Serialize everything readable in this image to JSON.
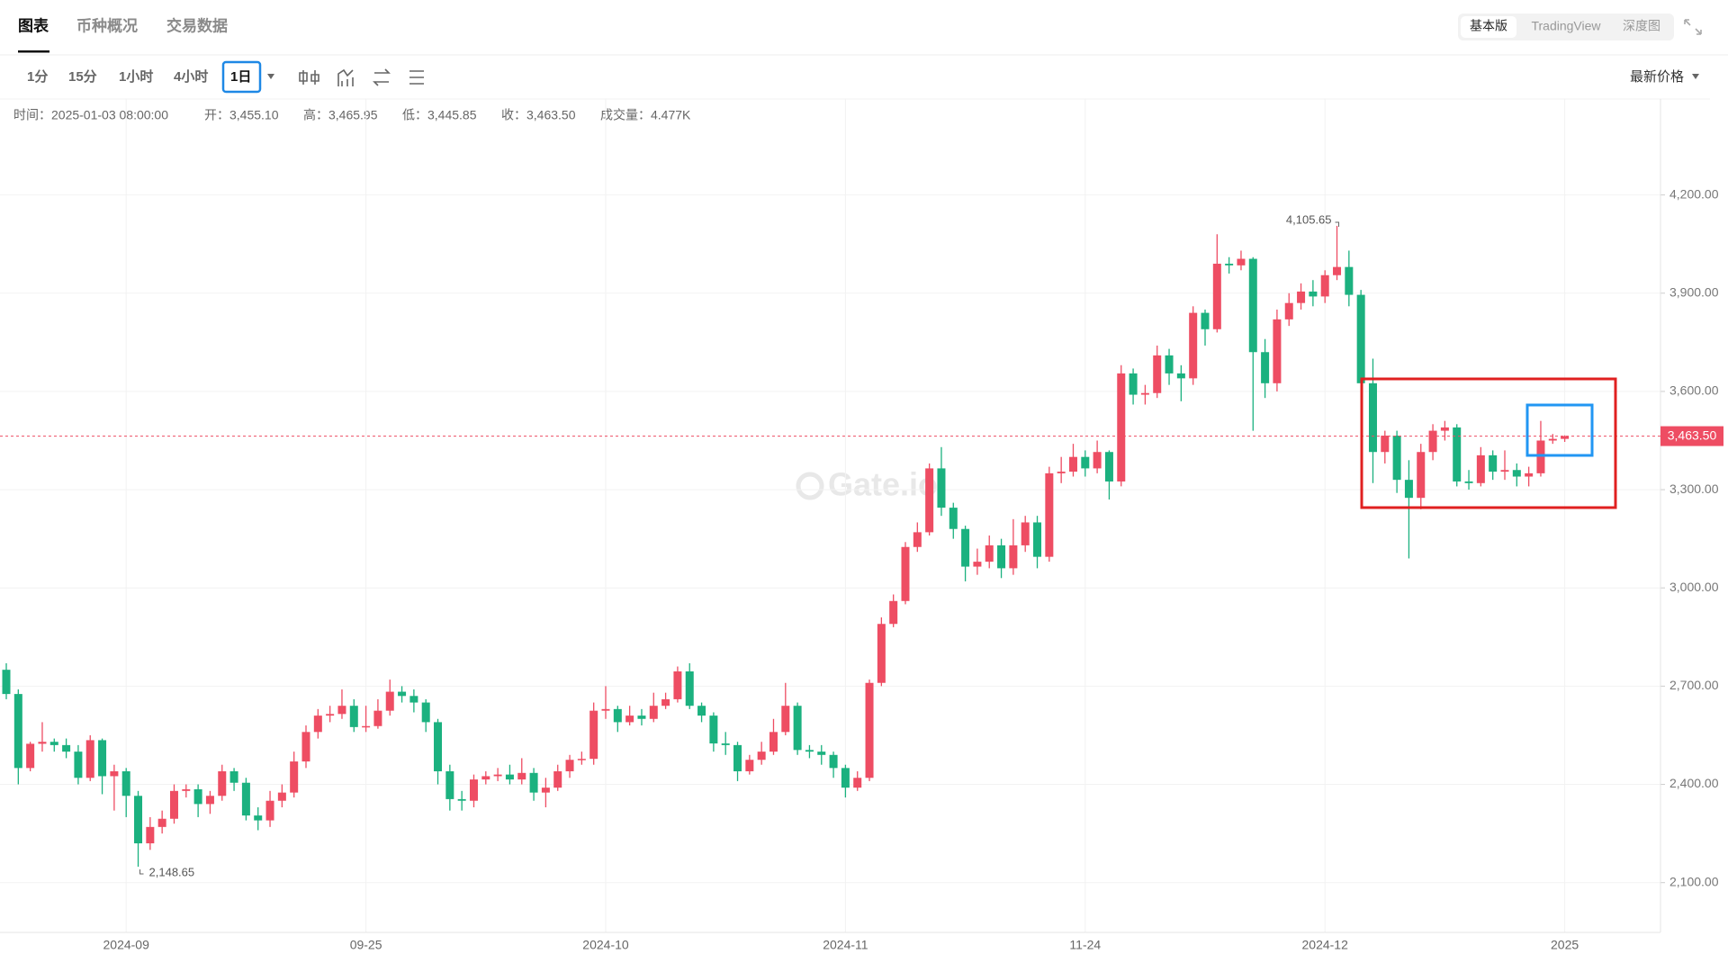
{
  "ui": {
    "tabs": [
      "图表",
      "币种概况",
      "交易数据"
    ],
    "modes": [
      "基本版",
      "TradingView",
      "深度图"
    ],
    "intervals": [
      "1分",
      "15分",
      "1小时",
      "4小时",
      "1日"
    ],
    "price_mode": "最新价格",
    "info": [
      "时间：2025-01-03 08:00:00",
      "开：3,455.10",
      "高：3,465.95",
      "低：3,445.85",
      "收：3,463.50",
      "成交量：4.477K"
    ],
    "watermark": "Gate.io"
  },
  "chart_data": {
    "type": "candlestick",
    "categories": [
      null,
      null,
      null,
      null,
      null,
      null,
      null,
      null,
      null,
      null,
      "2024-09",
      null,
      null,
      null,
      null,
      null,
      null,
      null,
      null,
      null,
      null,
      null,
      null,
      null,
      null,
      null,
      null,
      null,
      null,
      null,
      "09-25",
      null,
      null,
      null,
      null,
      null,
      null,
      null,
      null,
      null,
      null,
      null,
      null,
      null,
      null,
      null,
      null,
      null,
      null,
      null,
      "2024-10",
      null,
      null,
      null,
      null,
      null,
      null,
      null,
      null,
      null,
      null,
      null,
      null,
      null,
      null,
      null,
      null,
      null,
      null,
      null,
      "2024-11",
      null,
      null,
      null,
      null,
      null,
      null,
      null,
      null,
      null,
      null,
      null,
      null,
      null,
      null,
      null,
      null,
      null,
      null,
      null,
      "11-24",
      null,
      null,
      null,
      null,
      null,
      null,
      null,
      null,
      null,
      null,
      null,
      null,
      null,
      null,
      null,
      null,
      null,
      null,
      null,
      "2024-12",
      null,
      null,
      null,
      null,
      null,
      null,
      null,
      null,
      null,
      null,
      null,
      null,
      null,
      null,
      null,
      null,
      null,
      null,
      null,
      "2025"
    ],
    "open": [
      2750,
      2676,
      2450,
      2524,
      2530,
      2520,
      2500,
      2420,
      2535,
      2425,
      2440,
      2365,
      2220,
      2270,
      2295,
      2380,
      2385,
      2340,
      2365,
      2440,
      2405,
      2305,
      2290,
      2350,
      2375,
      2470,
      2560,
      2610,
      2615,
      2640,
      2575,
      2578,
      2625,
      2683,
      2670,
      2650,
      2590,
      2440,
      2355,
      2350,
      2415,
      2425,
      2430,
      2415,
      2435,
      2375,
      2390,
      2440,
      2475,
      2478,
      2625,
      2630,
      2590,
      2610,
      2600,
      2640,
      2660,
      2745,
      2640,
      2610,
      2525,
      2520,
      2440,
      2475,
      2500,
      2560,
      2640,
      2505,
      2500,
      2490,
      2450,
      2390,
      2420,
      2710,
      2890,
      2960,
      3125,
      3170,
      3365,
      3245,
      3180,
      3065,
      3080,
      3130,
      3060,
      3130,
      3200,
      3095,
      3350,
      3355,
      3400,
      3365,
      3415,
      3325,
      3655,
      3590,
      3595,
      3710,
      3655,
      3640,
      3840,
      3790,
      3990,
      3985,
      4005,
      3720,
      3625,
      3820,
      3870,
      3905,
      3890,
      3955,
      3980,
      3895,
      3625,
      3415,
      3465,
      3330,
      3275,
      3415,
      3480,
      3490,
      3325,
      3320,
      3405,
      3355,
      3360,
      3340,
      3350,
      3450,
      3455.1
    ],
    "high": [
      2770,
      2690,
      2530,
      2590,
      2540,
      2540,
      2520,
      2550,
      2540,
      2460,
      2450,
      2380,
      2300,
      2320,
      2400,
      2400,
      2400,
      2380,
      2460,
      2450,
      2420,
      2330,
      2380,
      2400,
      2500,
      2580,
      2630,
      2640,
      2690,
      2660,
      2640,
      2660,
      2720,
      2700,
      2690,
      2660,
      2600,
      2460,
      2380,
      2430,
      2440,
      2450,
      2460,
      2480,
      2450,
      2420,
      2460,
      2490,
      2500,
      2650,
      2700,
      2640,
      2640,
      2630,
      2680,
      2680,
      2760,
      2770,
      2650,
      2620,
      2560,
      2530,
      2490,
      2530,
      2600,
      2710,
      2650,
      2520,
      2520,
      2500,
      2460,
      2440,
      2720,
      2910,
      2980,
      3140,
      3200,
      3380,
      3430,
      3260,
      3190,
      3120,
      3160,
      3150,
      3210,
      3220,
      3220,
      3370,
      3400,
      3440,
      3420,
      3450,
      3420,
      3680,
      3670,
      3620,
      3740,
      3730,
      3680,
      3860,
      3850,
      4080,
      4010,
      4030,
      4010,
      3760,
      3850,
      3900,
      3930,
      3940,
      3970,
      4105.65,
      4030,
      3910,
      3700,
      3480,
      3480,
      3390,
      3440,
      3500,
      3510,
      3500,
      3360,
      3430,
      3420,
      3420,
      3380,
      3370,
      3510,
      3470,
      3465.95
    ],
    "low": [
      2660,
      2400,
      2440,
      2500,
      2500,
      2480,
      2400,
      2410,
      2370,
      2320,
      2300,
      2148.65,
      2200,
      2250,
      2280,
      2360,
      2300,
      2310,
      2350,
      2380,
      2290,
      2260,
      2270,
      2330,
      2360,
      2450,
      2540,
      2590,
      2600,
      2560,
      2560,
      2570,
      2610,
      2650,
      2620,
      2560,
      2400,
      2320,
      2320,
      2330,
      2400,
      2410,
      2400,
      2400,
      2350,
      2330,
      2380,
      2420,
      2460,
      2460,
      2600,
      2560,
      2580,
      2580,
      2590,
      2630,
      2650,
      2630,
      2590,
      2500,
      2490,
      2410,
      2430,
      2460,
      2490,
      2550,
      2490,
      2480,
      2460,
      2420,
      2360,
      2380,
      2410,
      2700,
      2880,
      2950,
      3110,
      3160,
      3220,
      3150,
      3020,
      3040,
      3060,
      3030,
      3040,
      3110,
      3060,
      3080,
      3320,
      3340,
      3340,
      3350,
      3270,
      3310,
      3560,
      3560,
      3580,
      3620,
      3570,
      3620,
      3740,
      3780,
      3960,
      3970,
      3480,
      3580,
      3600,
      3800,
      3850,
      3860,
      3870,
      3940,
      3860,
      3600,
      3320,
      3380,
      3290,
      3090,
      3240,
      3390,
      3450,
      3310,
      3300,
      3310,
      3330,
      3330,
      3310,
      3310,
      3340,
      3440,
      3445.85
    ],
    "close": [
      2676,
      2450,
      2524,
      2530,
      2520,
      2500,
      2420,
      2535,
      2425,
      2440,
      2365,
      2220,
      2270,
      2295,
      2380,
      2385,
      2340,
      2365,
      2440,
      2405,
      2305,
      2290,
      2350,
      2375,
      2470,
      2560,
      2610,
      2615,
      2640,
      2575,
      2578,
      2625,
      2683,
      2670,
      2650,
      2590,
      2440,
      2355,
      2350,
      2415,
      2425,
      2430,
      2415,
      2435,
      2375,
      2390,
      2440,
      2475,
      2478,
      2625,
      2630,
      2590,
      2610,
      2600,
      2640,
      2660,
      2745,
      2640,
      2610,
      2525,
      2520,
      2440,
      2475,
      2500,
      2560,
      2640,
      2505,
      2500,
      2490,
      2450,
      2390,
      2420,
      2710,
      2890,
      2960,
      3125,
      3170,
      3365,
      3245,
      3180,
      3065,
      3080,
      3130,
      3060,
      3130,
      3200,
      3095,
      3350,
      3355,
      3400,
      3365,
      3415,
      3325,
      3655,
      3590,
      3595,
      3710,
      3655,
      3640,
      3840,
      3790,
      3990,
      3985,
      4005,
      3720,
      3625,
      3820,
      3870,
      3905,
      3890,
      3955,
      3980,
      3895,
      3625,
      3415,
      3465,
      3330,
      3275,
      3415,
      3480,
      3490,
      3325,
      3320,
      3405,
      3355,
      3360,
      3340,
      3350,
      3450,
      3455.1,
      3463.5
    ],
    "ylim": [
      1948,
      4493
    ],
    "yticks": [
      {
        "value": 2100,
        "label": "2,100.00"
      },
      {
        "value": 2400,
        "label": "2,400.00"
      },
      {
        "value": 2700,
        "label": "2,700.00"
      },
      {
        "value": 3000,
        "label": "3,000.00"
      },
      {
        "value": 3300,
        "label": "3,300.00"
      },
      {
        "value": 3600,
        "label": "3,600.00"
      },
      {
        "value": 3900,
        "label": "3,900.00"
      },
      {
        "value": 4200,
        "label": "4,200.00"
      }
    ],
    "grid": true,
    "up_color": "#ee4d63",
    "down_color": "#1bb17f",
    "max_label": "4,105.65",
    "min_label": "2,148.65",
    "last_price_label": "3,463.50"
  }
}
